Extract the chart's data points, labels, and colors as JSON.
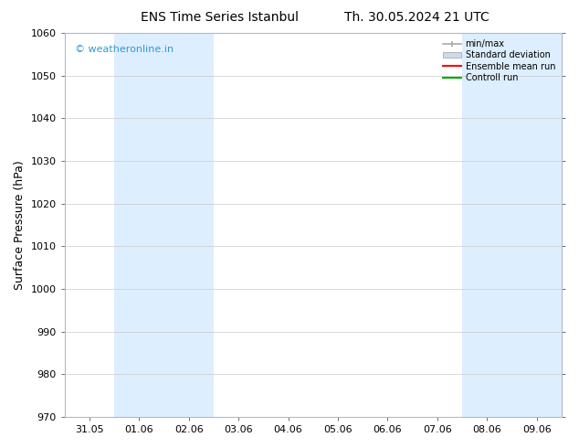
{
  "title_left": "ENS Time Series Istanbul",
  "title_right": "Th. 30.05.2024 21 UTC",
  "ylabel": "Surface Pressure (hPa)",
  "ylim": [
    970,
    1060
  ],
  "yticks": [
    970,
    980,
    990,
    1000,
    1010,
    1020,
    1030,
    1040,
    1050,
    1060
  ],
  "xlabel_ticks": [
    "31.05",
    "01.06",
    "02.06",
    "03.06",
    "04.06",
    "05.06",
    "06.06",
    "07.06",
    "08.06",
    "09.06"
  ],
  "x_positions": [
    0,
    1,
    2,
    3,
    4,
    5,
    6,
    7,
    8,
    9
  ],
  "xlim": [
    -0.5,
    9.5
  ],
  "shaded_bands": [
    {
      "x_start": 0.5,
      "x_end": 1.5
    },
    {
      "x_start": 1.5,
      "x_end": 2.5
    },
    {
      "x_start": 7.5,
      "x_end": 8.5
    },
    {
      "x_start": 8.5,
      "x_end": 9.5
    }
  ],
  "background_color": "#ffffff",
  "band_color": "#ddeeff",
  "grid_color": "#cccccc",
  "title_fontsize": 10,
  "tick_fontsize": 8,
  "ylabel_fontsize": 9,
  "watermark_text": "© weatheronline.in",
  "watermark_color": "#3399cc",
  "legend_labels": [
    "min/max",
    "Standard deviation",
    "Ensemble mean run",
    "Controll run"
  ],
  "legend_minmax_color": "#aaaaaa",
  "legend_std_color": "#ccdaee",
  "legend_ens_color": "#ff0000",
  "legend_ctrl_color": "#00aa00",
  "spine_color": "#aabbcc",
  "tick_color": "#555555"
}
